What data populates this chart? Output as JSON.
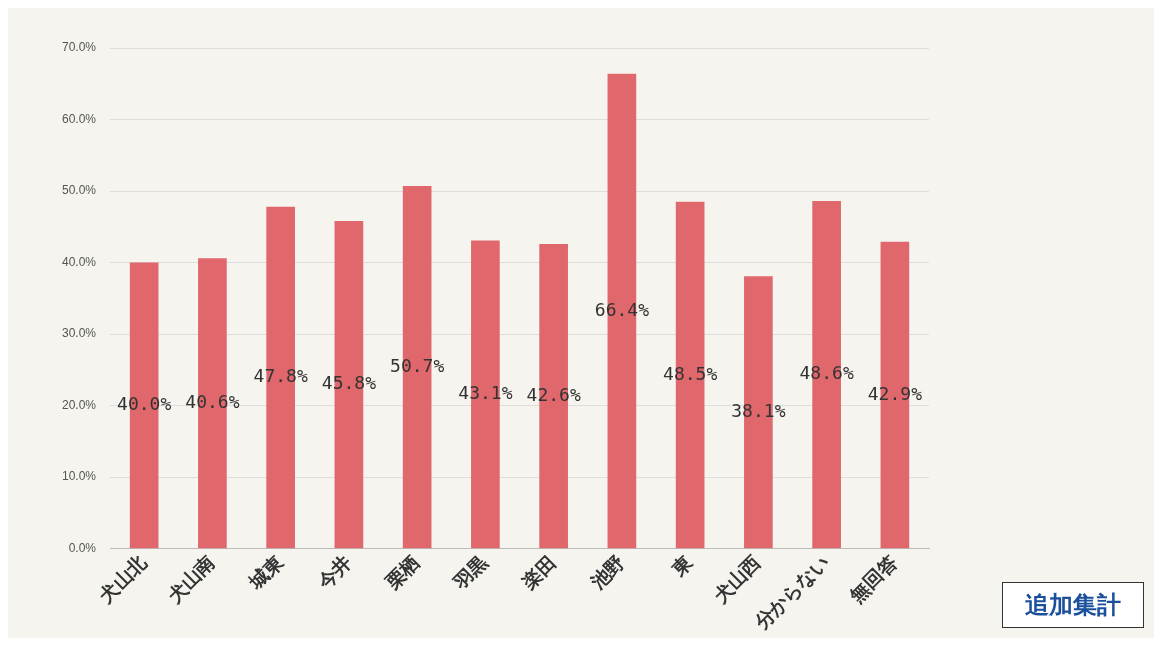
{
  "chart_data": {
    "type": "bar",
    "categories": [
      "犬山北",
      "犬山南",
      "城東",
      "今井",
      "栗栖",
      "羽黒",
      "楽田",
      "池野",
      "東",
      "犬山西",
      "分からない",
      "無回答"
    ],
    "values": [
      40.0,
      40.6,
      47.8,
      45.8,
      50.7,
      43.1,
      42.6,
      66.4,
      48.5,
      38.1,
      48.6,
      42.9
    ],
    "value_labels": [
      "40.0%",
      "40.6%",
      "47.8%",
      "45.8%",
      "50.7%",
      "43.1%",
      "42.6%",
      "66.4%",
      "48.5%",
      "38.1%",
      "48.6%",
      "42.9%"
    ],
    "color": "#e0676b",
    "ylim": [
      0,
      70
    ],
    "yticks": [
      {
        "value": 0,
        "label": "0.0%"
      },
      {
        "value": 10,
        "label": "10.0%"
      },
      {
        "value": 20,
        "label": "20.0%"
      },
      {
        "value": 30,
        "label": "30.0%"
      },
      {
        "value": 40,
        "label": "40.0%"
      },
      {
        "value": 50,
        "label": "50.0%"
      },
      {
        "value": 60,
        "label": "60.0%"
      },
      {
        "value": 70,
        "label": "70.0%"
      }
    ],
    "grid": "y",
    "legend": false,
    "annotations": [
      "追加集計"
    ]
  }
}
